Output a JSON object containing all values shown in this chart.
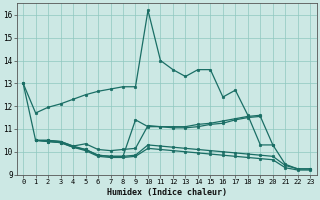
{
  "background_color": "#cce8e4",
  "grid_color": "#8fc8c0",
  "line_color": "#1a6e65",
  "xlabel": "Humidex (Indice chaleur)",
  "xlim": [
    -0.5,
    23.5
  ],
  "ylim": [
    9,
    16.5
  ],
  "yticks": [
    9,
    10,
    11,
    12,
    13,
    14,
    15,
    16
  ],
  "xticks": [
    0,
    1,
    2,
    3,
    4,
    5,
    6,
    7,
    8,
    9,
    10,
    11,
    12,
    13,
    14,
    15,
    16,
    17,
    18,
    19,
    20,
    21,
    22,
    23
  ],
  "lines": [
    {
      "comment": "top line: starts at 13, dips to 11.7, rises slowly to ~12.85, big spike at 10->16.2, then 14, 13.6, 13.3, 13.6, 13.6, 12.4, 12.7, 11.6, 10.3",
      "x": [
        0,
        1,
        2,
        3,
        4,
        5,
        6,
        7,
        8,
        9,
        10,
        11,
        12,
        13,
        14,
        15,
        16,
        17,
        18,
        19,
        20
      ],
      "y": [
        13.0,
        11.7,
        11.95,
        12.1,
        12.3,
        12.5,
        12.65,
        12.75,
        12.85,
        12.85,
        16.2,
        14.0,
        13.6,
        13.3,
        13.6,
        13.6,
        12.4,
        12.7,
        11.6,
        10.3,
        10.3
      ]
    },
    {
      "x": [
        0,
        1,
        2,
        3,
        4,
        5,
        6,
        7,
        8,
        9,
        10,
        11,
        12,
        13,
        14,
        15,
        16,
        17,
        18,
        19
      ],
      "y": [
        13.0,
        10.5,
        10.5,
        10.45,
        10.25,
        10.35,
        10.1,
        10.05,
        10.1,
        10.15,
        11.15,
        11.1,
        11.1,
        11.1,
        11.2,
        11.25,
        11.35,
        11.45,
        11.55,
        11.6
      ]
    },
    {
      "x": [
        1,
        2,
        3,
        4,
        5,
        6,
        7,
        8,
        9,
        10,
        11,
        12,
        13,
        14,
        15,
        16,
        17,
        18,
        19,
        20,
        21,
        22,
        23
      ],
      "y": [
        10.5,
        10.5,
        10.45,
        10.25,
        10.1,
        9.85,
        9.8,
        9.8,
        11.4,
        11.1,
        11.1,
        11.05,
        11.05,
        11.1,
        11.2,
        11.25,
        11.4,
        11.5,
        11.55,
        10.3,
        9.45,
        9.25,
        9.25
      ]
    },
    {
      "x": [
        1,
        2,
        3,
        4,
        5,
        6,
        7,
        8,
        9,
        10,
        11,
        12,
        13,
        14,
        15,
        16,
        17,
        18,
        19,
        20,
        21,
        22,
        23
      ],
      "y": [
        10.5,
        10.45,
        10.4,
        10.2,
        10.1,
        9.85,
        9.8,
        9.8,
        9.85,
        10.3,
        10.25,
        10.2,
        10.15,
        10.1,
        10.05,
        10.0,
        9.95,
        9.9,
        9.85,
        9.8,
        9.4,
        9.25,
        9.25
      ]
    },
    {
      "x": [
        1,
        2,
        3,
        4,
        5,
        6,
        7,
        8,
        9,
        10,
        11,
        12,
        13,
        14,
        15,
        16,
        17,
        18,
        19,
        20,
        21,
        22,
        23
      ],
      "y": [
        10.5,
        10.45,
        10.4,
        10.2,
        10.05,
        9.8,
        9.75,
        9.75,
        9.8,
        10.15,
        10.1,
        10.05,
        10.0,
        9.95,
        9.9,
        9.85,
        9.8,
        9.75,
        9.7,
        9.65,
        9.3,
        9.2,
        9.2
      ]
    }
  ]
}
